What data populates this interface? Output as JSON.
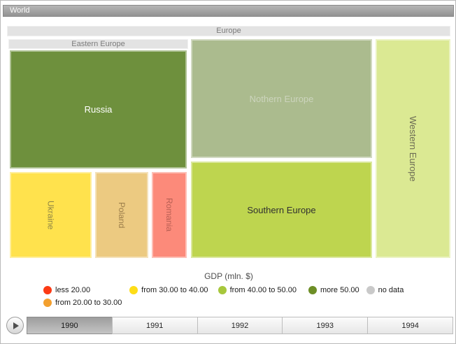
{
  "header": {
    "root_label": "World"
  },
  "treemap": {
    "groups": {
      "europe": {
        "label": "Europe"
      },
      "eastern_europe": {
        "label": "Eastern Europe"
      }
    },
    "nodes": {
      "russia": {
        "label": "Russia",
        "color": "#6e903d"
      },
      "ukraine": {
        "label": "Ukraine",
        "color": "#ffe24d"
      },
      "poland": {
        "label": "Poland",
        "color": "#ecca81"
      },
      "romania": {
        "label": "Romania",
        "color": "#fc8a7a"
      },
      "northern_europe": {
        "label": "Nothern Europe",
        "color": "#abbb8e"
      },
      "southern_europe": {
        "label": "Southern Europe",
        "color": "#bed54f"
      },
      "western_europe": {
        "label": "Western Europe",
        "color": "#dbe993"
      }
    }
  },
  "legend": {
    "title": "GDP (mln. $)",
    "items": [
      {
        "label": "less 20.00",
        "color": "#fc3a14"
      },
      {
        "label": "from 30.00 to 40.00",
        "color": "#fedd17"
      },
      {
        "label": "from 40.00 to 50.00",
        "color": "#a7c73c"
      },
      {
        "label": "more 50.00",
        "color": "#6d8e26"
      },
      {
        "label": "no data",
        "color": "#c9c9c9"
      },
      {
        "label": "from 20.00 to 30.00",
        "color": "#f3a02f"
      }
    ]
  },
  "timeline": {
    "years": [
      {
        "label": "1990",
        "selected": true
      },
      {
        "label": "1991",
        "selected": false
      },
      {
        "label": "1992",
        "selected": false
      },
      {
        "label": "1993",
        "selected": false
      },
      {
        "label": "1994",
        "selected": false
      }
    ]
  },
  "chart_data": {
    "type": "treemap",
    "title": "GDP (mln. $)",
    "root": "World",
    "selected_year": "1990",
    "years": [
      "1990",
      "1991",
      "1992",
      "1993",
      "1994"
    ],
    "hierarchy": [
      {
        "name": "Europe",
        "parent": "World"
      },
      {
        "name": "Eastern Europe",
        "parent": "Europe"
      },
      {
        "name": "Russia",
        "parent": "Eastern Europe",
        "color": "#6e903d",
        "legend_category": "more 50.00"
      },
      {
        "name": "Ukraine",
        "parent": "Eastern Europe",
        "color": "#ffe24d",
        "legend_category": "from 30.00 to 40.00"
      },
      {
        "name": "Poland",
        "parent": "Eastern Europe",
        "color": "#ecca81",
        "legend_category": "from 20.00 to 30.00"
      },
      {
        "name": "Romania",
        "parent": "Eastern Europe",
        "color": "#fc8a7a",
        "legend_category": "less 20.00"
      },
      {
        "name": "Nothern Europe",
        "parent": "Europe",
        "color": "#abbb8e"
      },
      {
        "name": "Southern Europe",
        "parent": "Europe",
        "color": "#bed54f",
        "legend_category": "from 40.00 to 50.00"
      },
      {
        "name": "Western Europe",
        "parent": "Europe",
        "color": "#dbe993",
        "legend_category": "from 40.00 to 50.00"
      }
    ],
    "legend_position": "bottom",
    "legend_categories": [
      {
        "label": "less 20.00",
        "color": "#fc3a14"
      },
      {
        "label": "from 20.00 to 30.00",
        "color": "#f3a02f"
      },
      {
        "label": "from 30.00 to 40.00",
        "color": "#fedd17"
      },
      {
        "label": "from 40.00 to 50.00",
        "color": "#a7c73c"
      },
      {
        "label": "more 50.00",
        "color": "#6d8e26"
      },
      {
        "label": "no data",
        "color": "#c9c9c9"
      }
    ]
  }
}
